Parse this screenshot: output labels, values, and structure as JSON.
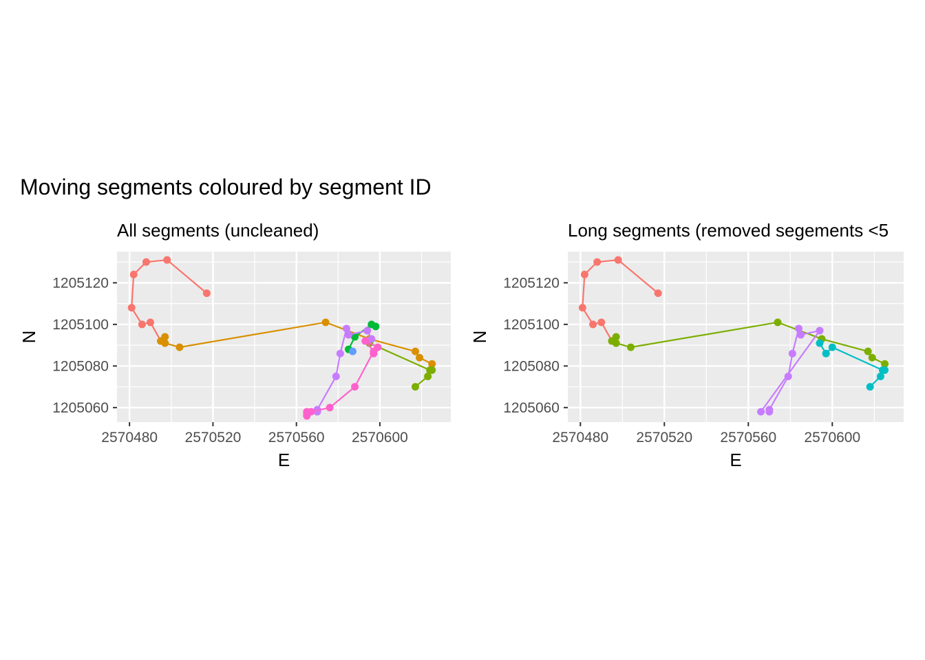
{
  "title": "Moving segments coloured by segment ID",
  "chart_data": [
    {
      "type": "scatter",
      "title": "All segments (uncleaned)",
      "xlabel": "E",
      "ylabel": "N",
      "xlim": [
        2570474,
        2570634
      ],
      "ylim": [
        1205053,
        1205135
      ],
      "xticks": [
        2570480,
        2570520,
        2570560,
        2570600
      ],
      "yticks": [
        1205060,
        1205080,
        1205100,
        1205120
      ],
      "grid": true,
      "series": [
        {
          "color": "#F8766D",
          "points": [
            [
              2570517,
              1205115
            ],
            [
              2570498,
              1205131
            ],
            [
              2570488,
              1205130
            ],
            [
              2570482,
              1205124
            ],
            [
              2570481,
              1205108
            ],
            [
              2570486,
              1205100
            ],
            [
              2570490,
              1205101
            ],
            [
              2570495,
              1205092
            ]
          ]
        },
        {
          "color": "#D89000",
          "points": [
            [
              2570495,
              1205092
            ],
            [
              2570497,
              1205094
            ],
            [
              2570497,
              1205091
            ],
            [
              2570504,
              1205089
            ],
            [
              2570574,
              1205101
            ],
            [
              2570595,
              1205093
            ],
            [
              2570617,
              1205087
            ],
            [
              2570619,
              1205084
            ],
            [
              2570625,
              1205081
            ]
          ]
        },
        {
          "color": "#7CAE00",
          "points": [
            [
              2570595,
              1205091
            ],
            [
              2570624,
              1205078
            ],
            [
              2570625,
              1205078
            ],
            [
              2570623,
              1205075
            ],
            [
              2570617,
              1205070
            ]
          ]
        },
        {
          "color": "#00BA38",
          "points": [
            [
              2570585,
              1205088
            ],
            [
              2570588,
              1205094
            ],
            [
              2570596,
              1205100
            ],
            [
              2570598,
              1205099
            ]
          ]
        },
        {
          "color": "#619CFF",
          "points": [
            [
              2570587,
              1205087
            ]
          ]
        },
        {
          "color": "#C77CFF",
          "points": [
            [
              2570570,
              1205058
            ],
            [
              2570570,
              1205059
            ],
            [
              2570579,
              1205075
            ],
            [
              2570581,
              1205086
            ],
            [
              2570584,
              1205098
            ],
            [
              2570585,
              1205095
            ],
            [
              2570594,
              1205097
            ],
            [
              2570596,
              1205093
            ]
          ]
        },
        {
          "color": "#FF61CC",
          "points": [
            [
              2570597,
              1205086
            ],
            [
              2570599,
              1205089
            ],
            [
              2570593,
              1205092
            ],
            [
              2570597,
              1205087
            ],
            [
              2570588,
              1205070
            ],
            [
              2570576,
              1205060
            ],
            [
              2570567,
              1205058
            ],
            [
              2570565,
              1205058
            ],
            [
              2570565,
              1205057
            ],
            [
              2570565,
              1205056
            ]
          ]
        }
      ]
    },
    {
      "type": "scatter",
      "title": "Long segments (removed segements <5",
      "xlabel": "E",
      "ylabel": "N",
      "xlim": [
        2570474,
        2570634
      ],
      "ylim": [
        1205053,
        1205135
      ],
      "xticks": [
        2570480,
        2570520,
        2570560,
        2570600
      ],
      "yticks": [
        1205060,
        1205080,
        1205100,
        1205120
      ],
      "grid": true,
      "series": [
        {
          "color": "#F8766D",
          "points": [
            [
              2570517,
              1205115
            ],
            [
              2570498,
              1205131
            ],
            [
              2570488,
              1205130
            ],
            [
              2570482,
              1205124
            ],
            [
              2570481,
              1205108
            ],
            [
              2570486,
              1205100
            ],
            [
              2570490,
              1205101
            ],
            [
              2570495,
              1205092
            ]
          ]
        },
        {
          "color": "#7CAE00",
          "points": [
            [
              2570495,
              1205092
            ],
            [
              2570497,
              1205094
            ],
            [
              2570497,
              1205091
            ],
            [
              2570504,
              1205089
            ],
            [
              2570574,
              1205101
            ],
            [
              2570595,
              1205093
            ],
            [
              2570617,
              1205087
            ],
            [
              2570619,
              1205084
            ],
            [
              2570625,
              1205081
            ]
          ]
        },
        {
          "color": "#00BFC4",
          "points": [
            [
              2570594,
              1205091
            ],
            [
              2570597,
              1205086
            ],
            [
              2570600,
              1205089
            ],
            [
              2570624,
              1205078
            ],
            [
              2570625,
              1205078
            ],
            [
              2570623,
              1205075
            ],
            [
              2570618,
              1205070
            ]
          ]
        },
        {
          "color": "#C77CFF",
          "points": [
            [
              2570570,
              1205058
            ],
            [
              2570570,
              1205059
            ],
            [
              2570579,
              1205075
            ],
            [
              2570581,
              1205086
            ],
            [
              2570584,
              1205098
            ],
            [
              2570585,
              1205095
            ],
            [
              2570594,
              1205097
            ],
            [
              2570566,
              1205058
            ]
          ]
        }
      ]
    }
  ]
}
